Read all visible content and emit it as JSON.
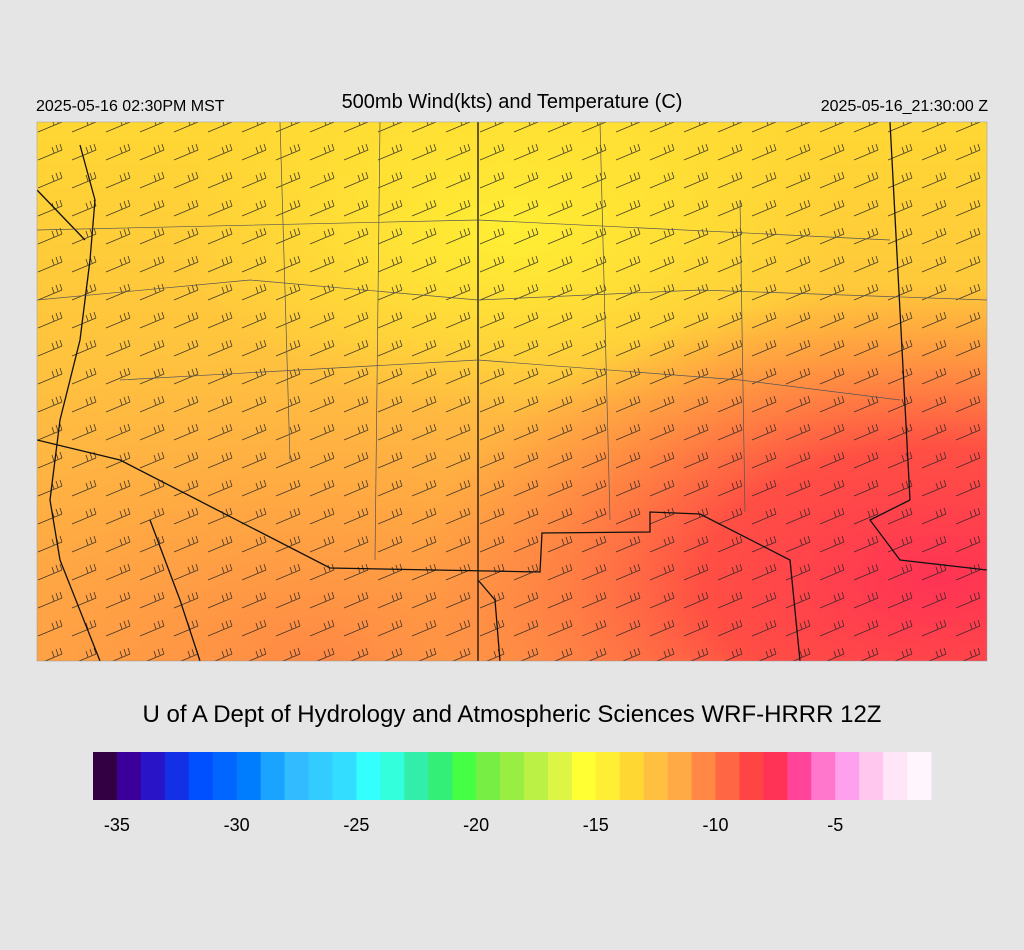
{
  "header": {
    "local_time": "2025-05-16 02:30PM MST",
    "title": "500mb Wind(kts) and Temperature (C)",
    "utc_time": "2025-05-16_21:30:00 Z"
  },
  "footer": {
    "credit": "U of A Dept of Hydrology and Atmospheric Sciences WRF-HRRR 12Z"
  },
  "colorbar": {
    "range": [
      -36,
      -1
    ],
    "ticks": [
      -35,
      -30,
      -25,
      -20,
      -15,
      -10,
      -5
    ],
    "colors": [
      "#330044",
      "#3a0099",
      "#2a14c8",
      "#1430e6",
      "#0050ff",
      "#0066ff",
      "#007cff",
      "#1aa4ff",
      "#33bbff",
      "#33ccff",
      "#33ddff",
      "#33ffff",
      "#33ffdd",
      "#33eeaa",
      "#33ee77",
      "#44ff44",
      "#77ee44",
      "#99ee44",
      "#bbf044",
      "#ddf544",
      "#ffff33",
      "#ffee33",
      "#ffd733",
      "#ffc040",
      "#ffaa44",
      "#ff8844",
      "#ff6644",
      "#ff4444",
      "#ff3355",
      "#ff4499",
      "#ff77cc",
      "#ffa0ee",
      "#ffc6ee",
      "#ffe5f8",
      "#fff5fc"
    ]
  }
}
